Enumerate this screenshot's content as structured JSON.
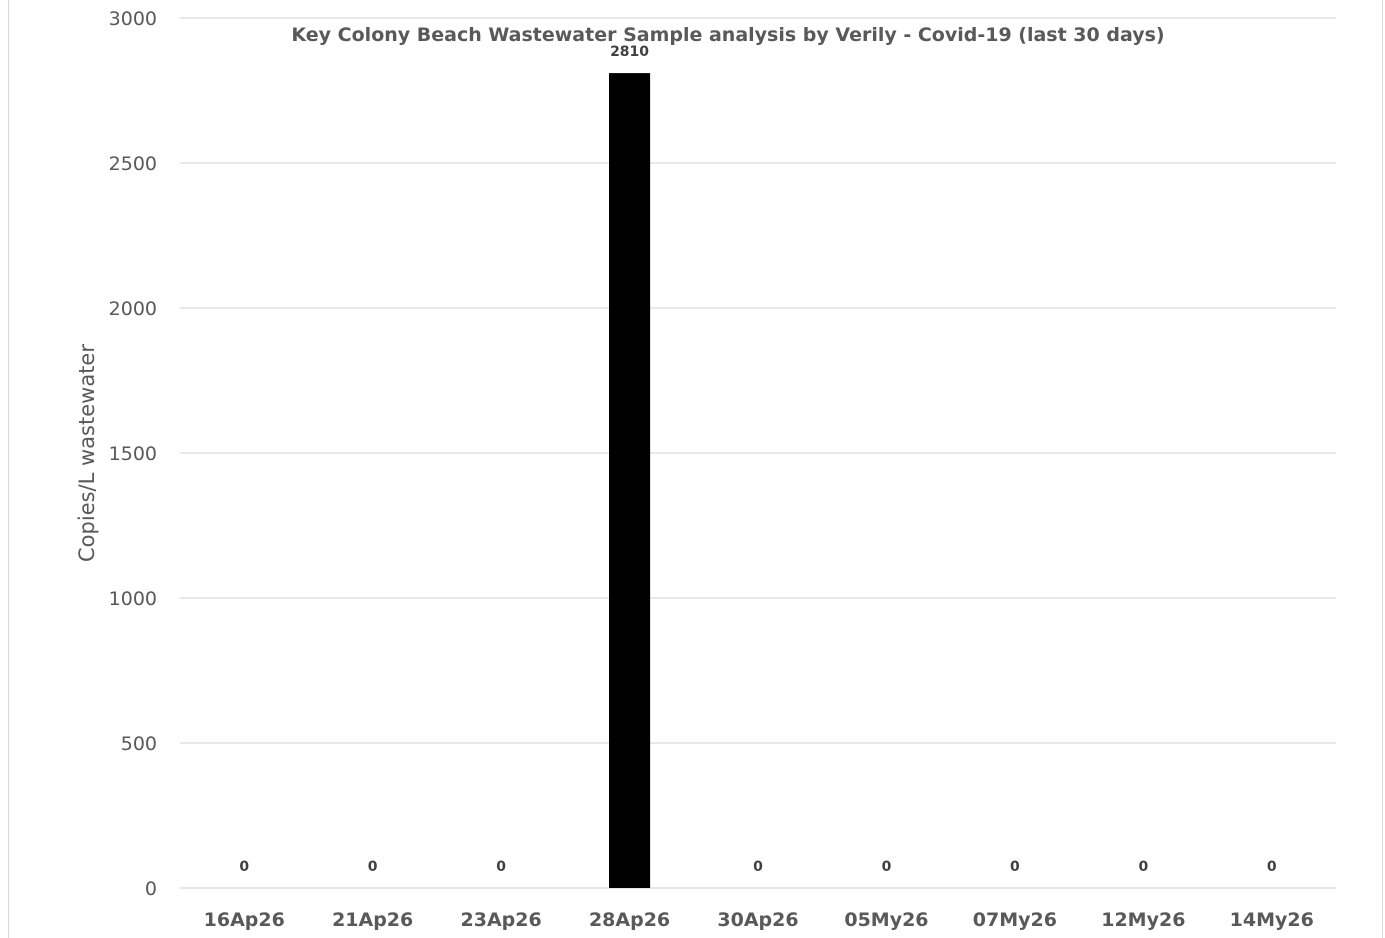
{
  "chart_data": {
    "type": "bar",
    "title": "Key Colony Beach Wastewater Sample analysis by Verily - Covid-19 (last 30 days)",
    "xlabel": "",
    "ylabel": "Copies/L wastewater",
    "categories": [
      "16Ap26",
      "21Ap26",
      "23Ap26",
      "28Ap26",
      "30Ap26",
      "05My26",
      "07My26",
      "12My26",
      "14My26"
    ],
    "values": [
      0,
      0,
      0,
      2810,
      0,
      0,
      0,
      0,
      0
    ],
    "data_labels": [
      "0",
      "0",
      "0",
      "2810",
      "0",
      "0",
      "0",
      "0",
      "0"
    ],
    "ylim": [
      0,
      3000
    ],
    "yticks": [
      0,
      500,
      1000,
      1500,
      2000,
      2500,
      3000
    ],
    "grid": true,
    "legend": "none",
    "bar_color": "#000000"
  }
}
